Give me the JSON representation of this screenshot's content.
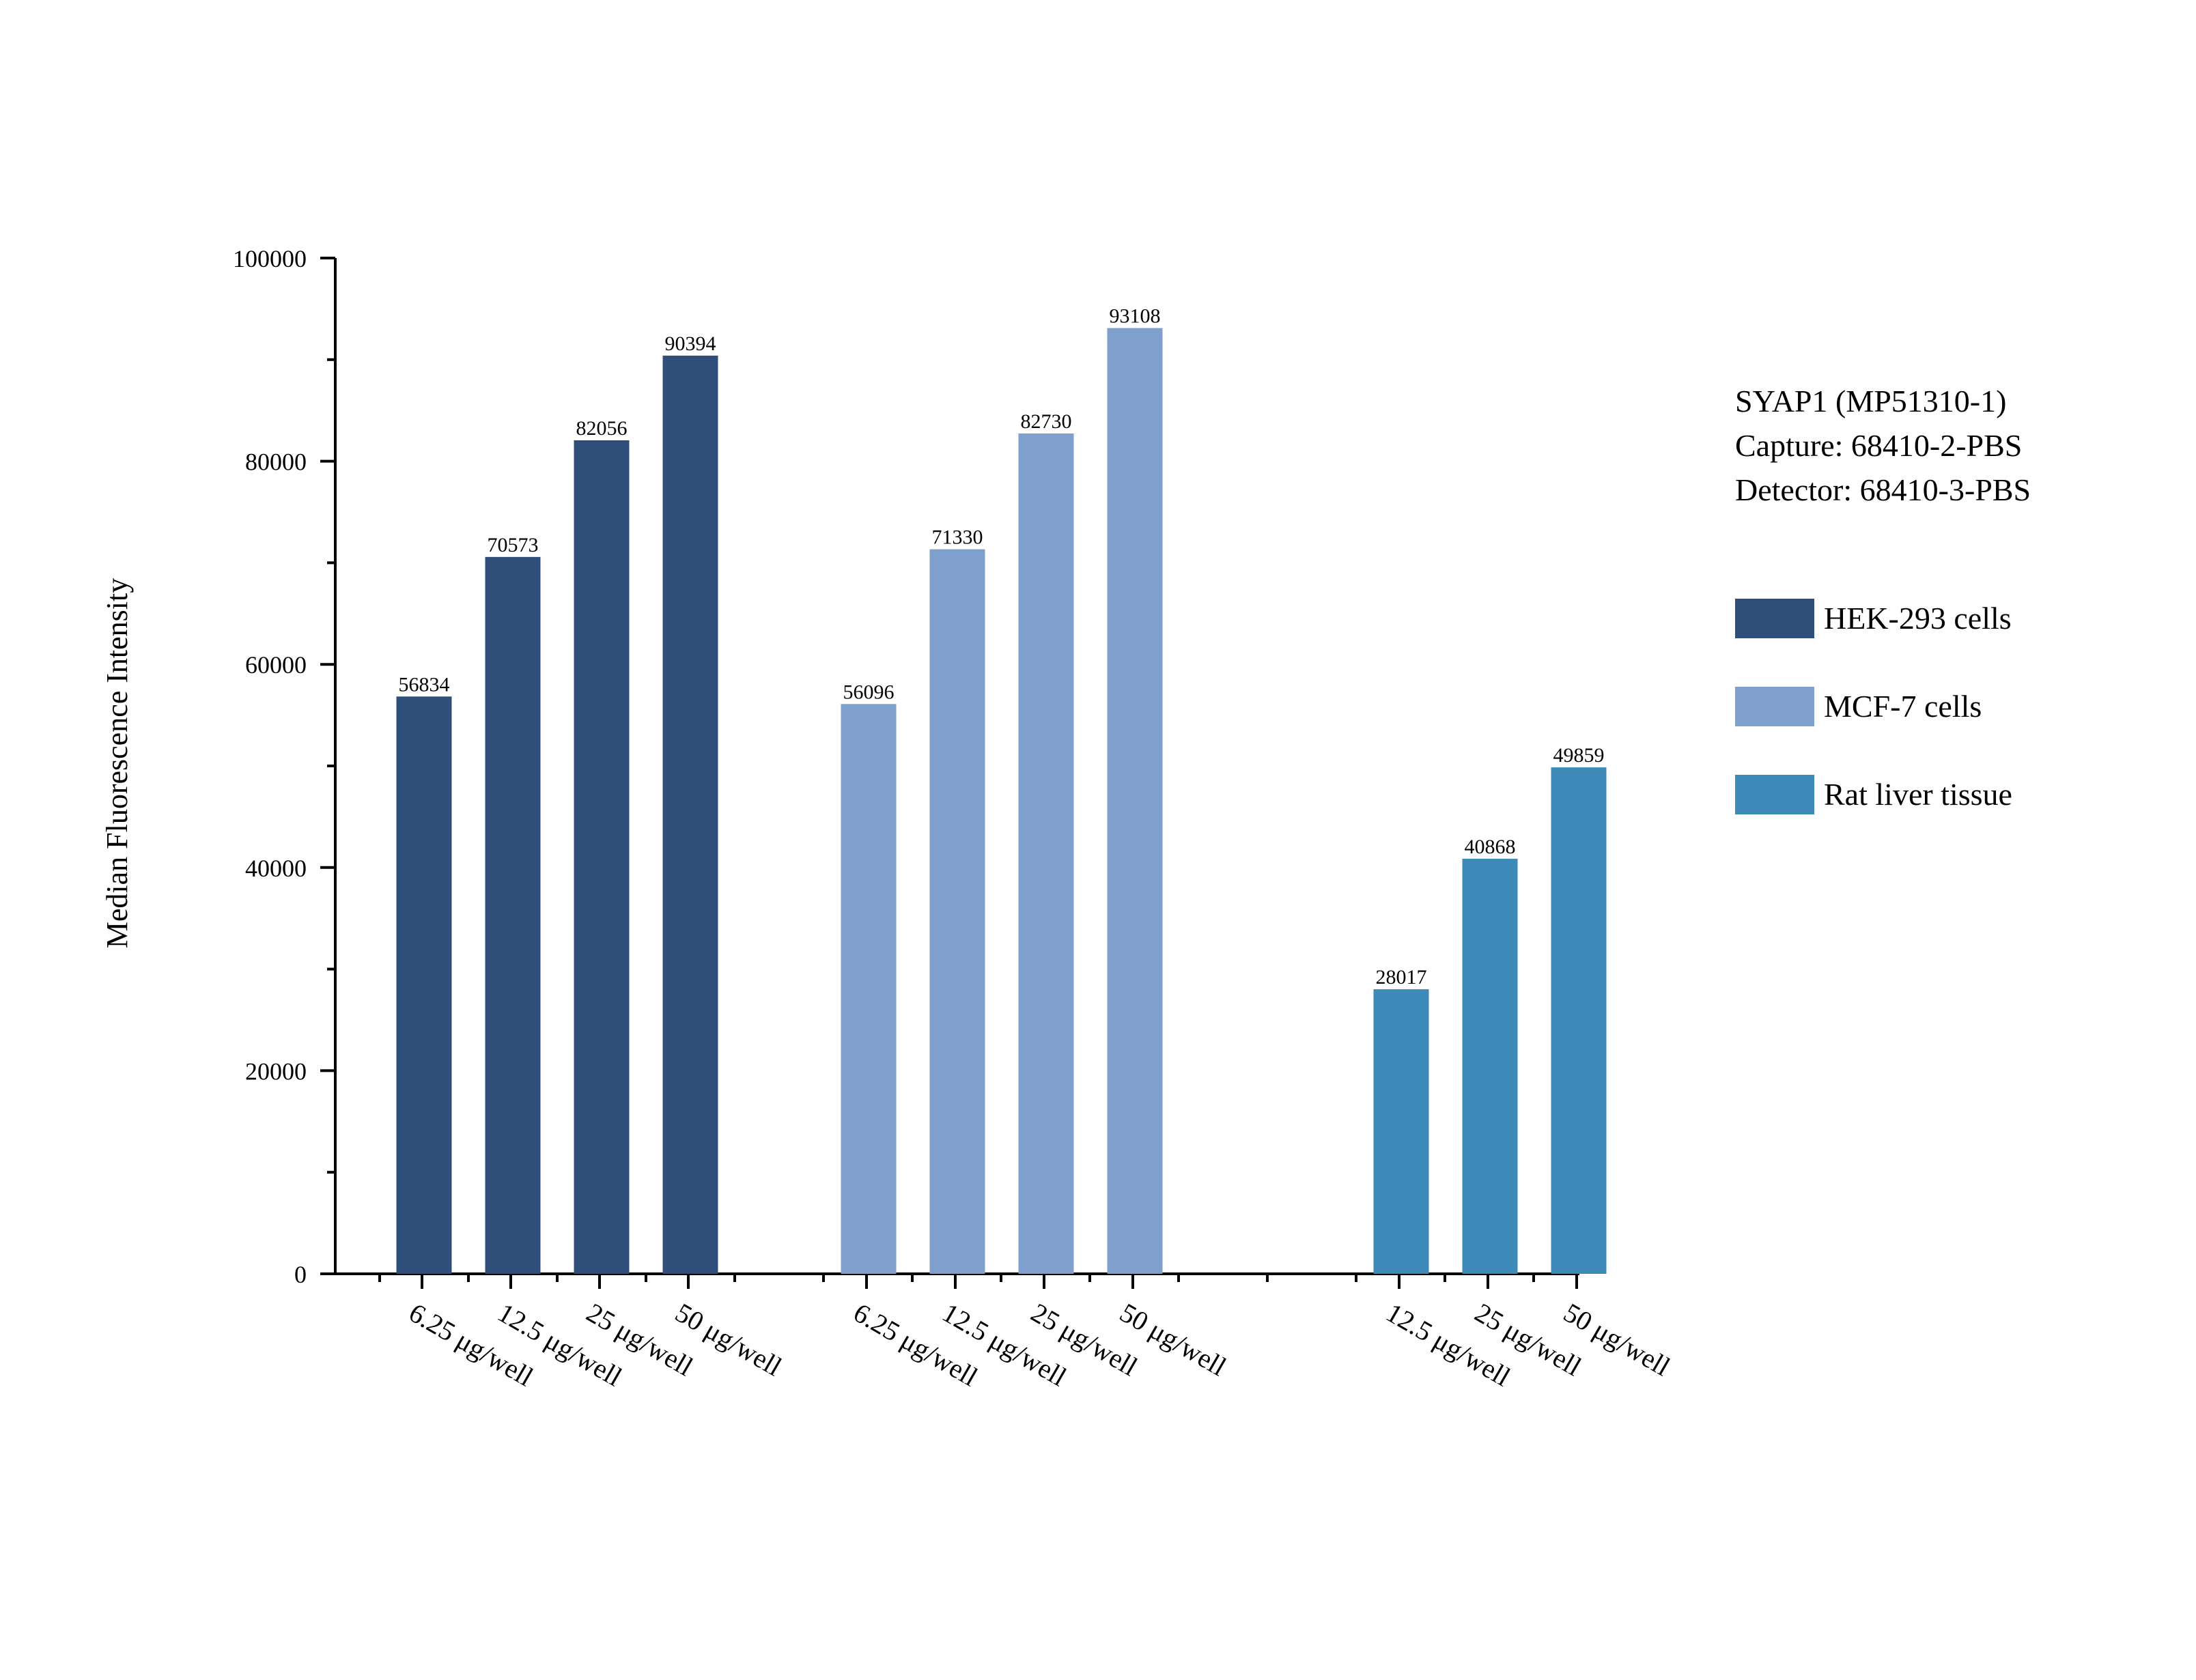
{
  "chart_data": {
    "type": "bar",
    "title": "",
    "xlabel": "",
    "ylabel": "Median Fluorescence Intensity",
    "ylim": [
      0,
      100000
    ],
    "yticks": [
      0,
      20000,
      40000,
      60000,
      80000,
      100000
    ],
    "grid": false,
    "legend_position": "right",
    "annotation_lines": [
      "SYAP1 (MP51310-1)",
      "Capture: 68410-2-PBS",
      "Detector: 68410-3-PBS"
    ],
    "series": [
      {
        "name": "HEK-293 cells",
        "color": "#2F4F7A",
        "categories": [
          "6.25 μg/well",
          "12.5 μg/well",
          "25 μg/well",
          "50 μg/well"
        ],
        "values": [
          56834,
          70573,
          82056,
          90394
        ]
      },
      {
        "name": "MCF-7 cells",
        "color": "#7F9FCC",
        "categories": [
          "6.25 μg/well",
          "12.5 μg/well",
          "25 μg/well",
          "50 μg/well"
        ],
        "values": [
          56096,
          71330,
          82730,
          93108
        ]
      },
      {
        "name": "Rat liver tissue",
        "color": "#3D8AB8",
        "categories": [
          "12.5 μg/well",
          "25 μg/well",
          "50 μg/well"
        ],
        "values": [
          28017,
          40868,
          49859
        ]
      }
    ]
  }
}
